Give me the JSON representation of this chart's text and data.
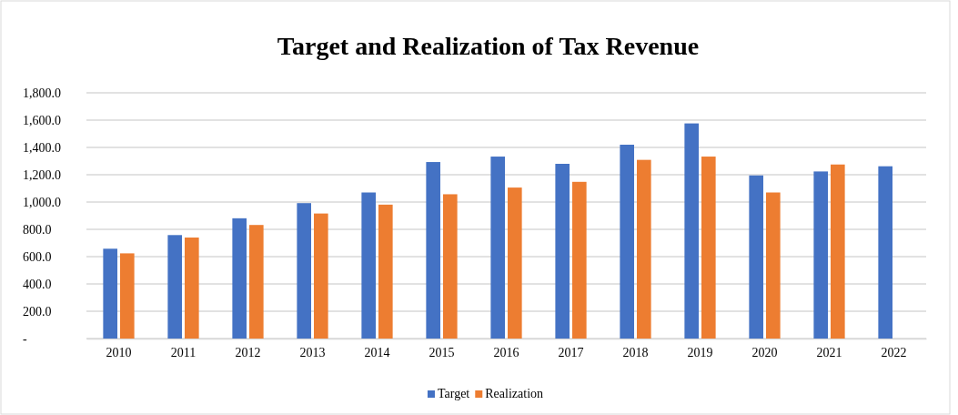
{
  "chart_data": {
    "type": "bar",
    "title": "Target and Realization of Tax Revenue",
    "categories": [
      "2010",
      "2011",
      "2012",
      "2013",
      "2014",
      "2015",
      "2016",
      "2017",
      "2018",
      "2019",
      "2020",
      "2021",
      "2022"
    ],
    "series": [
      {
        "name": "Target",
        "color": "#4472c4",
        "values": [
          658,
          758,
          881,
          992,
          1070,
          1293,
          1333,
          1280,
          1420,
          1576,
          1195,
          1224,
          1262
        ]
      },
      {
        "name": "Realization",
        "color": "#ed7d31",
        "values": [
          624,
          740,
          832,
          916,
          981,
          1057,
          1106,
          1148,
          1309,
          1333,
          1070,
          1275,
          null
        ]
      }
    ],
    "ylim": [
      0,
      1800
    ],
    "yticks": [
      {
        "value": 0,
        "label": "-"
      },
      {
        "value": 200,
        "label": "200.0"
      },
      {
        "value": 400,
        "label": "400.0"
      },
      {
        "value": 600,
        "label": "600.0"
      },
      {
        "value": 800,
        "label": "800.0"
      },
      {
        "value": 1000,
        "label": "1,000.0"
      },
      {
        "value": 1200,
        "label": "1,200.0"
      },
      {
        "value": 1400,
        "label": "1,400.0"
      },
      {
        "value": 1600,
        "label": "1,600.0"
      },
      {
        "value": 1800,
        "label": "1,800.0"
      }
    ],
    "grid": "y",
    "legend": "bottom"
  }
}
